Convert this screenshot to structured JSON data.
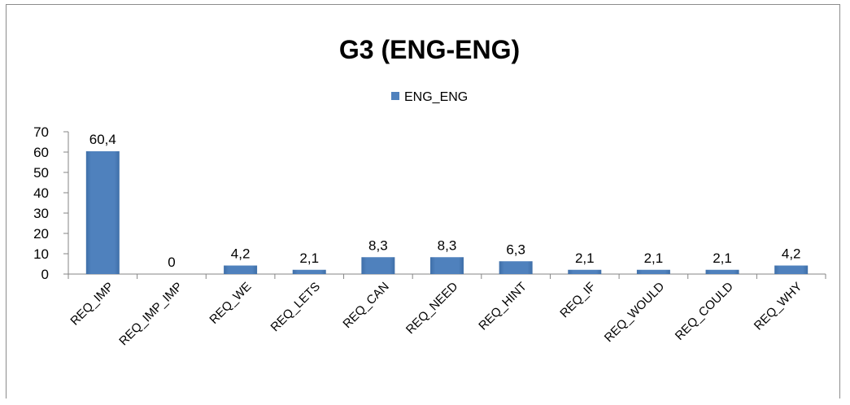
{
  "chart_data": {
    "type": "bar",
    "title": "G3 (ENG-ENG)",
    "xlabel": "",
    "ylabel": "",
    "ylim": [
      0,
      70
    ],
    "yticks": [
      0,
      10,
      20,
      30,
      40,
      50,
      60,
      70
    ],
    "grid": false,
    "legend_position": "top",
    "categories": [
      "REQ_IMP",
      "REQ_IMP_IMP",
      "REQ_WE",
      "REQ_LETS",
      "REQ_CAN",
      "REQ_NEED",
      "REQ_HINT",
      "REQ_IF",
      "REQ_WOULD",
      "REQ_COULD",
      "REQ_WHY"
    ],
    "series": [
      {
        "name": "ENG_ENG",
        "color": "#4f81bd",
        "values": [
          60.4,
          0,
          4.2,
          2.1,
          8.3,
          8.3,
          6.3,
          2.1,
          2.1,
          2.1,
          4.2
        ],
        "value_labels": [
          "60,4",
          "0",
          "4,2",
          "2,1",
          "8,3",
          "8,3",
          "6,3",
          "2,1",
          "2,1",
          "2,1",
          "4,2"
        ]
      }
    ]
  }
}
